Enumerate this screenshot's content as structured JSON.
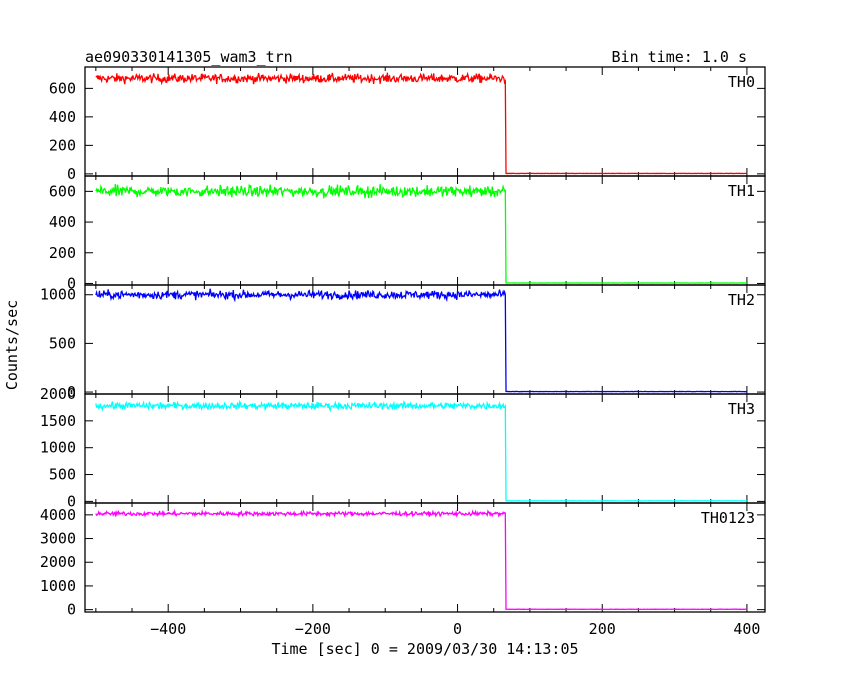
{
  "chart_data": {
    "type": "line",
    "title": "ae090330141305_wam3_trn",
    "subtitle": "Bin time: 1.0 s",
    "xlabel": "Time [sec] 0 = 2009/03/30 14:13:05",
    "ylabel": "Counts/sec",
    "xlim": [
      -515,
      425
    ],
    "x_ticks": [
      -400,
      -200,
      0,
      200,
      400
    ],
    "step_time": 67,
    "data_start": -500,
    "data_end": 400,
    "panels": [
      {
        "name": "TH0",
        "color": "#ff0000",
        "ylim": [
          -15,
          750
        ],
        "y_ticks": [
          0,
          200,
          400,
          600
        ],
        "level_before": 670,
        "noise": 22,
        "level_after": 3
      },
      {
        "name": "TH1",
        "color": "#00ff00",
        "ylim": [
          -10,
          700
        ],
        "y_ticks": [
          0,
          200,
          400,
          600
        ],
        "level_before": 600,
        "noise": 25,
        "level_after": 3
      },
      {
        "name": "TH2",
        "color": "#0000ff",
        "ylim": [
          -20,
          1100
        ],
        "y_ticks": [
          0,
          500,
          1000
        ],
        "level_before": 1000,
        "noise": 30,
        "level_after": 5
      },
      {
        "name": "TH3",
        "color": "#00ffff",
        "ylim": [
          -30,
          2000
        ],
        "y_ticks": [
          0,
          500,
          1000,
          1500,
          2000
        ],
        "level_before": 1780,
        "noise": 45,
        "level_after": 10
      },
      {
        "name": "TH0123",
        "color": "#ff00ff",
        "ylim": [
          -100,
          4500
        ],
        "y_ticks": [
          0,
          1000,
          2000,
          3000,
          4000
        ],
        "level_before": 4050,
        "noise": 60,
        "level_after": 15
      }
    ]
  }
}
